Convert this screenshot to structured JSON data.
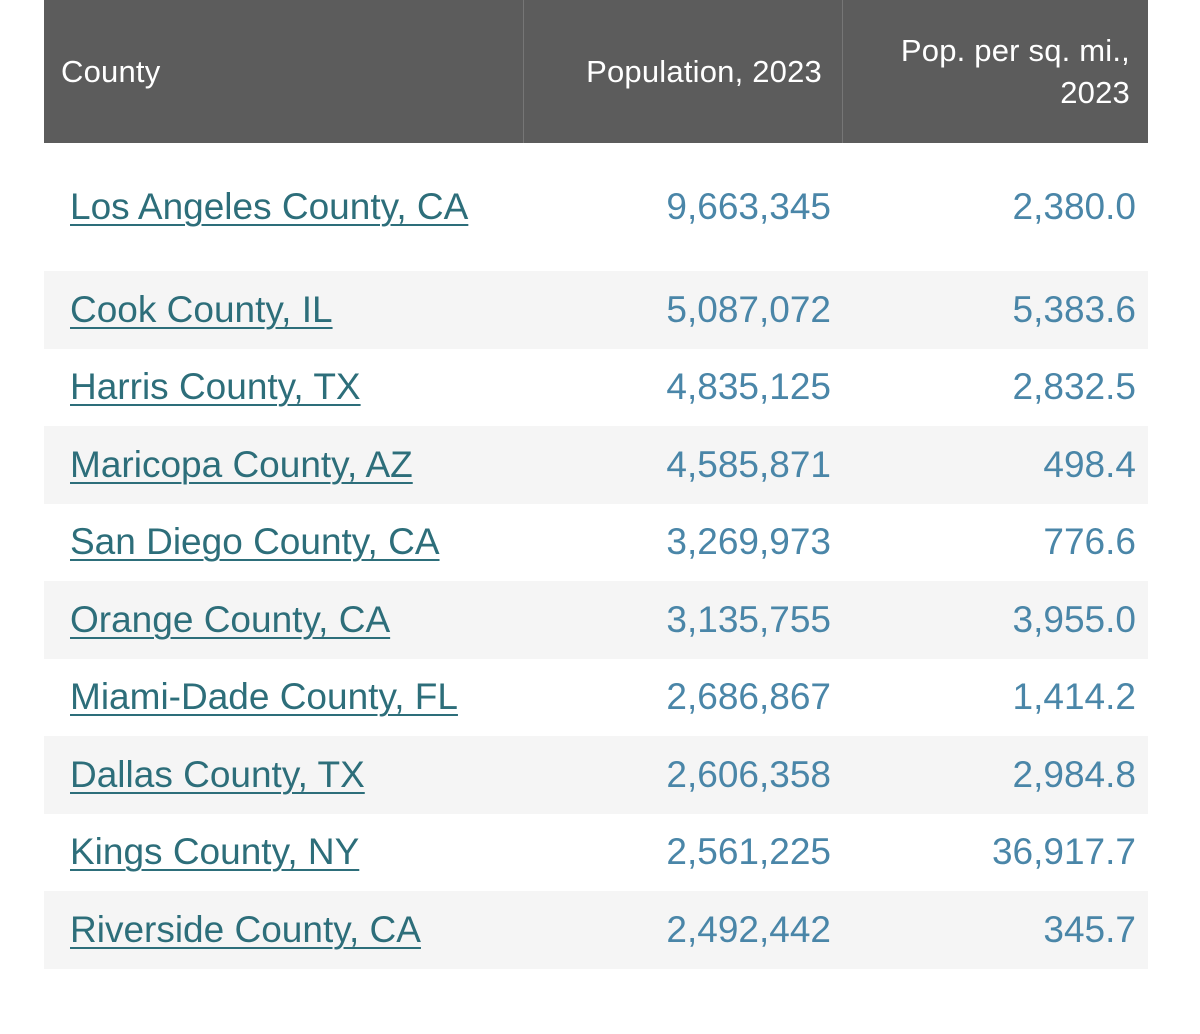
{
  "table": {
    "headers": {
      "county": "County",
      "population": "Population, 2023",
      "density_line1": "Pop. per sq. mi.,",
      "density_line2": "2023"
    },
    "rows": [
      {
        "county": "Los Angeles County, CA",
        "population": "9,663,345",
        "density": "2,380.0"
      },
      {
        "county": "Cook County, IL",
        "population": "5,087,072",
        "density": "5,383.6"
      },
      {
        "county": "Harris County, TX",
        "population": "4,835,125",
        "density": "2,832.5"
      },
      {
        "county": "Maricopa County, AZ",
        "population": "4,585,871",
        "density": "498.4"
      },
      {
        "county": "San Diego County, CA",
        "population": "3,269,973",
        "density": "776.6"
      },
      {
        "county": "Orange County, CA",
        "population": "3,135,755",
        "density": "3,955.0"
      },
      {
        "county": "Miami-Dade County, FL",
        "population": "2,686,867",
        "density": "1,414.2"
      },
      {
        "county": "Dallas County, TX",
        "population": "2,606,358",
        "density": "2,984.8"
      },
      {
        "county": "Kings County, NY",
        "population": "2,561,225",
        "density": "36,917.7"
      },
      {
        "county": "Riverside County, CA",
        "population": "2,492,442",
        "density": "345.7"
      }
    ]
  },
  "colors": {
    "header_bg": "#5c5c5c",
    "link": "#2d6e7a",
    "number": "#4a86a8",
    "alt_row": "#f5f5f5"
  }
}
